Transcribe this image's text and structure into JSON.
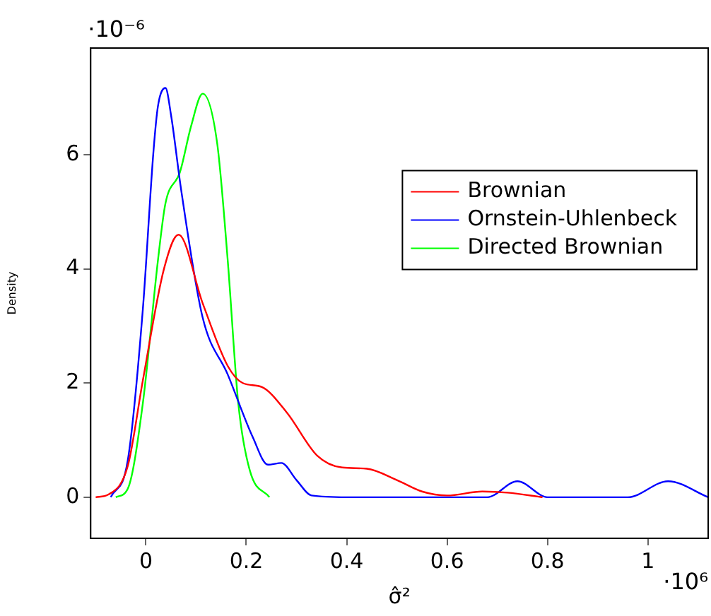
{
  "chart_data": {
    "type": "line",
    "xlabel": "σ̂²",
    "ylabel": "Density",
    "annotations": [
      "·10⁻⁶",
      "·10⁶"
    ],
    "xlim": [
      -0.11,
      1.12
    ],
    "xticks": [
      0,
      0.2,
      0.4,
      0.6,
      0.8,
      1
    ],
    "ylim": [
      -0.72,
      7.87
    ],
    "yticks": [
      0,
      2,
      4,
      6
    ],
    "grid": false,
    "legend": "right",
    "marker": "none",
    "line_style": "solid",
    "series": [
      {
        "name": "Brownian",
        "color": "#ff0000",
        "x": [
          -0.1,
          -0.074,
          -0.036,
          -0.006,
          0.036,
          0.065,
          0.113,
          0.163,
          0.193,
          0.231,
          0.281,
          0.341,
          0.391,
          0.44,
          0.5,
          0.55,
          0.6,
          0.67,
          0.72,
          0.79
        ],
        "values": [
          0,
          0.05,
          0.55,
          2.05,
          4.0,
          4.6,
          3.4,
          2.3,
          2.0,
          1.93,
          1.48,
          0.73,
          0.52,
          0.5,
          0.3,
          0.1,
          0.03,
          0.1,
          0.08,
          0
        ]
      },
      {
        "name": "Ornstein-Uhlenbeck",
        "color": "#0000ff",
        "x": [
          -0.07,
          -0.036,
          -0.006,
          0.015,
          0.024,
          0.039,
          0.05,
          0.07,
          0.113,
          0.163,
          0.213,
          0.243,
          0.27,
          0.3,
          0.33,
          0.4,
          0.68,
          0.74,
          0.8,
          0.96,
          1.04,
          1.12
        ],
        "values": [
          0,
          0.65,
          3.3,
          6.05,
          6.85,
          7.17,
          6.7,
          5.4,
          3.15,
          2.15,
          1.05,
          0.57,
          0.6,
          0.3,
          0.03,
          0,
          0,
          0.28,
          0,
          0,
          0.28,
          0
        ]
      },
      {
        "name": "Directed Brownian",
        "color": "#00ff00",
        "x": [
          -0.06,
          -0.036,
          -0.006,
          0.024,
          0.039,
          0.068,
          0.09,
          0.113,
          0.142,
          0.163,
          0.184,
          0.207,
          0.246
        ],
        "values": [
          0,
          0.15,
          1.65,
          4.15,
          5.15,
          5.7,
          6.5,
          7.07,
          6.2,
          4.15,
          1.65,
          0.47,
          0
        ]
      }
    ]
  }
}
